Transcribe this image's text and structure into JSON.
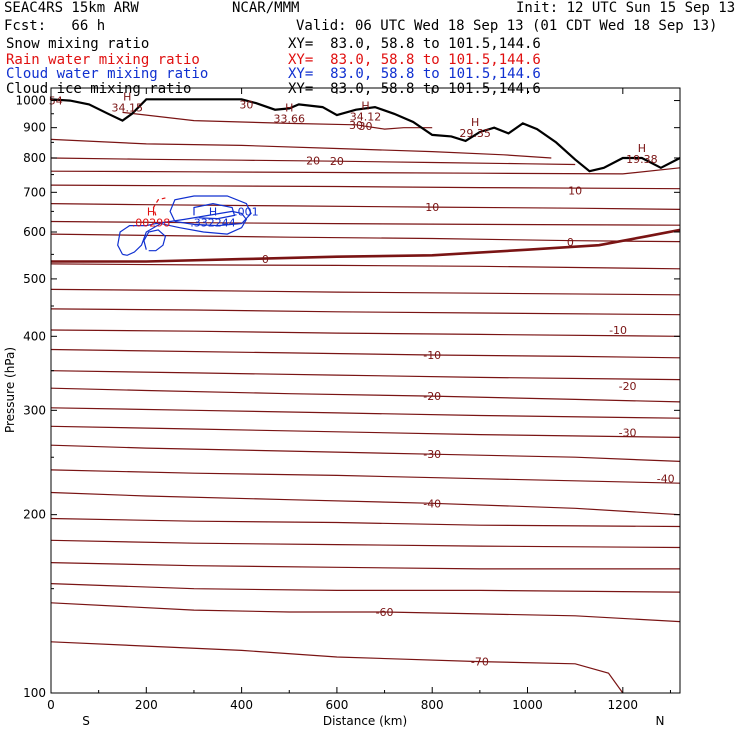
{
  "header": {
    "model": "SEAC4RS 15km ARW",
    "center": "NCAR/MMM",
    "init": "Init: 12 UTC Sun 15 Sep 13",
    "fcst": "Fcst:   66 h",
    "valid": "Valid: 06 UTC Wed 18 Sep 13 (01 CDT Wed 18 Sep 13)",
    "fields": [
      {
        "name": "Snow mixing ratio",
        "xy": "XY=  83.0, 58.8 to 101.5,144.6",
        "color": "#000000"
      },
      {
        "name": "Rain water mixing ratio",
        "xy": "XY=  83.0, 58.8 to 101.5,144.6",
        "color": "#e01010"
      },
      {
        "name": "Cloud water mixing ratio",
        "xy": "XY=  83.0, 58.8 to 101.5,144.6",
        "color": "#1030d0"
      },
      {
        "name": "Cloud ice mixing ratio",
        "xy": "XY=  83.0, 58.8 to 101.5,144.6",
        "color": "#000000"
      }
    ]
  },
  "chart_data": {
    "type": "contour-cross-section",
    "xlabel": "Distance (km)",
    "ylabel": "Pressure (hPa)",
    "xlim": [
      0,
      1320
    ],
    "ylim": [
      1050,
      100
    ],
    "y_scale": "log",
    "x_ticks": [
      0,
      200,
      400,
      600,
      800,
      1000,
      1200
    ],
    "y_ticks": [
      100,
      200,
      300,
      400,
      500,
      600,
      700,
      800,
      900,
      1000
    ],
    "x_ends": {
      "left": "S",
      "right": "N"
    },
    "colors": {
      "temperature": "#7a1414",
      "freezing": "#7a1414",
      "terrain": "#000000",
      "cloud_water": "#1030d0",
      "rain": "#e01010"
    },
    "temperature_contours": [
      {
        "label": "-70",
        "pts": [
          [
            0,
            122
          ],
          [
            200,
            120
          ],
          [
            400,
            118
          ],
          [
            600,
            115
          ],
          [
            900,
            113
          ],
          [
            1100,
            112
          ],
          [
            1170,
            108
          ],
          [
            1200,
            100
          ]
        ]
      },
      {
        "label": "-60",
        "pts": [
          [
            0,
            142
          ],
          [
            300,
            138
          ],
          [
            500,
            137
          ],
          [
            700,
            137
          ],
          [
            900,
            136
          ],
          [
            1100,
            135
          ],
          [
            1320,
            132
          ]
        ]
      },
      {
        "label": "",
        "pts": [
          [
            0,
            153
          ],
          [
            300,
            150
          ],
          [
            600,
            149
          ],
          [
            900,
            149
          ],
          [
            1320,
            148
          ]
        ]
      },
      {
        "label": "",
        "pts": [
          [
            0,
            166
          ],
          [
            300,
            164
          ],
          [
            600,
            163
          ],
          [
            900,
            162
          ],
          [
            1320,
            162
          ]
        ]
      },
      {
        "label": "",
        "pts": [
          [
            0,
            181
          ],
          [
            300,
            179
          ],
          [
            600,
            178
          ],
          [
            900,
            177
          ],
          [
            1320,
            176
          ]
        ]
      },
      {
        "label": "",
        "pts": [
          [
            0,
            197
          ],
          [
            300,
            195
          ],
          [
            600,
            194
          ],
          [
            900,
            192
          ],
          [
            1320,
            191
          ]
        ]
      },
      {
        "label": "-40",
        "pts": [
          [
            0,
            218
          ],
          [
            200,
            215
          ],
          [
            500,
            212
          ],
          [
            800,
            209
          ],
          [
            1100,
            205
          ],
          [
            1320,
            200
          ]
        ]
      },
      {
        "label": "",
        "pts": [
          [
            0,
            238
          ],
          [
            300,
            235
          ],
          [
            600,
            233
          ],
          [
            900,
            230
          ],
          [
            1320,
            226
          ]
        ]
      },
      {
        "label": "-30",
        "pts": [
          [
            0,
            262
          ],
          [
            200,
            259
          ],
          [
            500,
            256
          ],
          [
            800,
            253
          ],
          [
            1100,
            250
          ],
          [
            1320,
            246
          ]
        ]
      },
      {
        "label": "",
        "pts": [
          [
            0,
            282
          ],
          [
            300,
            279
          ],
          [
            600,
            276
          ],
          [
            900,
            273
          ],
          [
            1320,
            270
          ]
        ]
      },
      {
        "label": "",
        "pts": [
          [
            0,
            303
          ],
          [
            300,
            300
          ],
          [
            600,
            297
          ],
          [
            900,
            294
          ],
          [
            1320,
            291
          ]
        ]
      },
      {
        "label": "-20",
        "pts": [
          [
            0,
            327
          ],
          [
            200,
            324
          ],
          [
            500,
            320
          ],
          [
            800,
            317
          ],
          [
            1100,
            313
          ],
          [
            1320,
            310
          ]
        ]
      },
      {
        "label": "",
        "pts": [
          [
            0,
            350
          ],
          [
            300,
            347
          ],
          [
            600,
            344
          ],
          [
            900,
            341
          ],
          [
            1320,
            338
          ]
        ]
      },
      {
        "label": "-10",
        "pts": [
          [
            0,
            380
          ],
          [
            200,
            378
          ],
          [
            500,
            375
          ],
          [
            800,
            372
          ],
          [
            1100,
            370
          ],
          [
            1320,
            368
          ]
        ]
      },
      {
        "label": "",
        "pts": [
          [
            0,
            410
          ],
          [
            300,
            408
          ],
          [
            600,
            405
          ],
          [
            900,
            403
          ],
          [
            1320,
            400
          ]
        ]
      },
      {
        "label": "",
        "pts": [
          [
            0,
            445
          ],
          [
            300,
            443
          ],
          [
            600,
            440
          ],
          [
            900,
            438
          ],
          [
            1320,
            435
          ]
        ]
      },
      {
        "label": "",
        "pts": [
          [
            0,
            480
          ],
          [
            300,
            478
          ],
          [
            600,
            475
          ],
          [
            900,
            473
          ],
          [
            1320,
            470
          ]
        ]
      },
      {
        "label": "",
        "pts": [
          [
            0,
            530
          ],
          [
            300,
            528
          ],
          [
            600,
            527
          ],
          [
            900,
            525
          ],
          [
            1320,
            520
          ]
        ]
      },
      {
        "label": "",
        "pts": [
          [
            0,
            595
          ],
          [
            200,
            592
          ],
          [
            500,
            588
          ],
          [
            800,
            585
          ],
          [
            1100,
            580
          ],
          [
            1320,
            578
          ]
        ]
      },
      {
        "label": "",
        "pts": [
          [
            0,
            625
          ],
          [
            300,
            622
          ],
          [
            600,
            620
          ],
          [
            900,
            618
          ],
          [
            1320,
            616
          ]
        ]
      },
      {
        "label": "10",
        "pts": [
          [
            0,
            670
          ],
          [
            200,
            667
          ],
          [
            500,
            664
          ],
          [
            800,
            661
          ],
          [
            1100,
            658
          ],
          [
            1320,
            655
          ]
        ]
      },
      {
        "label": "",
        "pts": [
          [
            0,
            720
          ],
          [
            300,
            718
          ],
          [
            600,
            716
          ],
          [
            900,
            713
          ],
          [
            1320,
            710
          ]
        ]
      },
      {
        "label": "",
        "pts": [
          [
            0,
            760
          ],
          [
            300,
            758
          ],
          [
            600,
            756
          ],
          [
            900,
            754
          ],
          [
            1200,
            752
          ],
          [
            1320,
            770
          ]
        ]
      },
      {
        "label": "20",
        "pts": [
          [
            0,
            800
          ],
          [
            200,
            796
          ],
          [
            400,
            793
          ],
          [
            600,
            790
          ],
          [
            800,
            786
          ],
          [
            1000,
            782
          ],
          [
            1100,
            780
          ]
        ]
      },
      {
        "label": "",
        "pts": [
          [
            0,
            860
          ],
          [
            200,
            845
          ],
          [
            400,
            840
          ],
          [
            600,
            830
          ],
          [
            800,
            820
          ],
          [
            950,
            810
          ],
          [
            1050,
            800
          ]
        ]
      },
      {
        "label": "30",
        "pts": [
          [
            150,
            955
          ],
          [
            300,
            925
          ],
          [
            500,
            915
          ],
          [
            640,
            910
          ],
          [
            700,
            895
          ],
          [
            740,
            900
          ],
          [
            800,
            900
          ]
        ]
      }
    ],
    "freezing_level": {
      "label": "0",
      "pts": [
        [
          0,
          535
        ],
        [
          200,
          535
        ],
        [
          400,
          540
        ],
        [
          600,
          545
        ],
        [
          800,
          548
        ],
        [
          1000,
          560
        ],
        [
          1150,
          570
        ],
        [
          1250,
          590
        ],
        [
          1320,
          605
        ]
      ]
    },
    "terrain": [
      [
        0,
        1005
      ],
      [
        40,
        1000
      ],
      [
        80,
        985
      ],
      [
        120,
        950
      ],
      [
        150,
        925
      ],
      [
        170,
        950
      ],
      [
        200,
        1005
      ],
      [
        300,
        1005
      ],
      [
        400,
        1005
      ],
      [
        430,
        990
      ],
      [
        470,
        965
      ],
      [
        500,
        970
      ],
      [
        520,
        985
      ],
      [
        570,
        975
      ],
      [
        600,
        945
      ],
      [
        640,
        965
      ],
      [
        680,
        975
      ],
      [
        720,
        950
      ],
      [
        760,
        920
      ],
      [
        800,
        875
      ],
      [
        840,
        870
      ],
      [
        870,
        855
      ],
      [
        900,
        885
      ],
      [
        930,
        900
      ],
      [
        960,
        880
      ],
      [
        990,
        915
      ],
      [
        1020,
        895
      ],
      [
        1060,
        850
      ],
      [
        1100,
        795
      ],
      [
        1130,
        760
      ],
      [
        1160,
        770
      ],
      [
        1200,
        800
      ],
      [
        1240,
        800
      ],
      [
        1280,
        770
      ],
      [
        1320,
        800
      ]
    ],
    "cloud_water_contours": [
      {
        "label": "",
        "pts": [
          [
            150,
            550
          ],
          [
            140,
            570
          ],
          [
            145,
            600
          ],
          [
            165,
            615
          ],
          [
            200,
            615
          ],
          [
            220,
            620
          ],
          [
            250,
            625
          ],
          [
            280,
            630
          ],
          [
            330,
            640
          ],
          [
            380,
            650
          ],
          [
            400,
            645
          ],
          [
            410,
            630
          ],
          [
            400,
            610
          ],
          [
            370,
            595
          ],
          [
            320,
            600
          ],
          [
            270,
            610
          ],
          [
            230,
            620
          ],
          [
            200,
            600
          ],
          [
            190,
            570
          ],
          [
            175,
            555
          ],
          [
            160,
            548
          ],
          [
            150,
            550
          ]
        ]
      },
      {
        "label": "",
        "pts": [
          [
            200,
            560
          ],
          [
            195,
            580
          ],
          [
            205,
            600
          ],
          [
            225,
            605
          ],
          [
            240,
            590
          ],
          [
            235,
            570
          ],
          [
            220,
            558
          ],
          [
            205,
            558
          ]
        ]
      },
      {
        "label": ".001",
        "pts": [
          [
            260,
            625
          ],
          [
            250,
            650
          ],
          [
            260,
            680
          ],
          [
            300,
            690
          ],
          [
            370,
            690
          ],
          [
            410,
            670
          ],
          [
            420,
            645
          ],
          [
            400,
            620
          ],
          [
            350,
            615
          ],
          [
            300,
            618
          ],
          [
            260,
            625
          ]
        ]
      },
      {
        "label": "",
        "pts": [
          [
            300,
            640
          ],
          [
            300,
            660
          ],
          [
            340,
            670
          ],
          [
            380,
            660
          ],
          [
            385,
            640
          ],
          [
            350,
            632
          ],
          [
            310,
            634
          ]
        ]
      }
    ],
    "rain_contours": [
      {
        "label": "",
        "pts": [
          [
            220,
            640
          ],
          [
            215,
            660
          ],
          [
            225,
            680
          ],
          [
            240,
            685
          ]
        ]
      }
    ],
    "max_labels": [
      {
        "text": ".00298",
        "x": 210,
        "p": 640,
        "color": "#e01010"
      },
      {
        "text": ".332244",
        "x": 340,
        "p": 640,
        "color": "#1030d0"
      },
      {
        "text": "34.15",
        "x": 160,
        "p": 1000,
        "color": "#7a1414"
      },
      {
        "text": "33.66",
        "x": 500,
        "p": 958,
        "color": "#7a1414"
      },
      {
        "text": "34.12",
        "x": 660,
        "p": 965,
        "color": "#7a1414"
      },
      {
        "text": "29.35",
        "x": 890,
        "p": 905,
        "color": "#7a1414"
      },
      {
        "text": "19.38",
        "x": 1240,
        "p": 818,
        "color": "#7a1414"
      }
    ],
    "edge_labels": [
      {
        "text": "54",
        "x": 10,
        "p": 1000
      },
      {
        "text": "30",
        "x": 410,
        "p": 985
      },
      {
        "text": "30",
        "x": 660,
        "p": 905
      },
      {
        "text": "20",
        "x": 550,
        "p": 792
      },
      {
        "text": "-40",
        "x": 1290,
        "p": 230
      },
      {
        "text": "-30",
        "x": 1210,
        "p": 275
      },
      {
        "text": "-20",
        "x": 1210,
        "p": 330
      },
      {
        "text": "-10",
        "x": 1190,
        "p": 410
      },
      {
        "text": "0",
        "x": 1090,
        "p": 577
      },
      {
        "text": "10",
        "x": 1100,
        "p": 705
      }
    ]
  }
}
